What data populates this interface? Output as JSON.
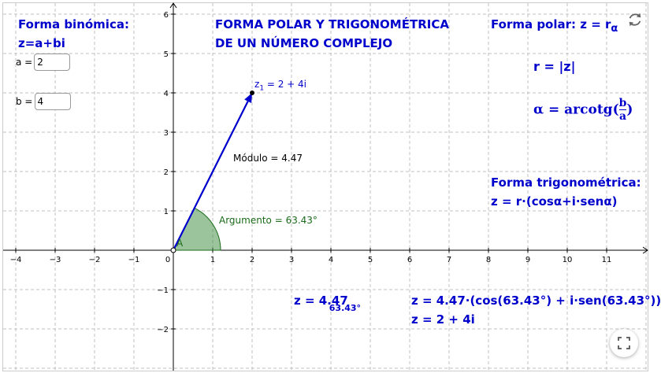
{
  "applet": {
    "title_line1": "FORMA POLAR Y TRIGONOMÉTRICA",
    "title_line2": "DE UN NÚMERO COMPLEJO",
    "binomica_title": "Forma binómica:",
    "binomica_formula": "z=a+bi",
    "polar_title": "Forma polar:  z = r",
    "polar_sub": "α",
    "r_formula": "r = |z|",
    "alpha_left": "α = arcotg(",
    "alpha_num": "b",
    "alpha_den": "a",
    "alpha_right": ")",
    "trig_title": "Forma trigonométrica:",
    "trig_formula": "z = r·(cosα+i·senα)",
    "result_polar_main": "z = 4.47",
    "result_polar_sub": "63.43°",
    "result_trig": "z = 4.47·(cos(63.43°) + i·sen(63.43°))",
    "result_bin": "z = 2 + 4i"
  },
  "inputs": {
    "a_label": "a =",
    "a_value": "2",
    "b_label": "b =",
    "b_value": "4"
  },
  "plot": {
    "point_label_main": "z",
    "point_label_sub": "1",
    "point_label_rest": " = 2 + 4i",
    "modulo_label": "Módulo = 4.47",
    "argumento_label": "Argumento = 63.43°",
    "origin_label": "A",
    "x_ticks": [
      "−4",
      "−3",
      "−2",
      "−1",
      "0",
      "1",
      "2",
      "3",
      "4",
      "5",
      "6",
      "7",
      "8",
      "9",
      "10",
      "11"
    ],
    "y_ticks": [
      "6",
      "5",
      "4",
      "3",
      "2",
      "1",
      "−1",
      "−2"
    ],
    "point": {
      "x": 2,
      "y": 4
    },
    "angle_deg": 63.43,
    "axis_color": "#000000",
    "vector_color": "#0000cc",
    "angle_color": "#3a8a3a",
    "grid": true
  },
  "icons": {
    "reset": "reset-icon",
    "fullscreen": "fullscreen-icon"
  }
}
